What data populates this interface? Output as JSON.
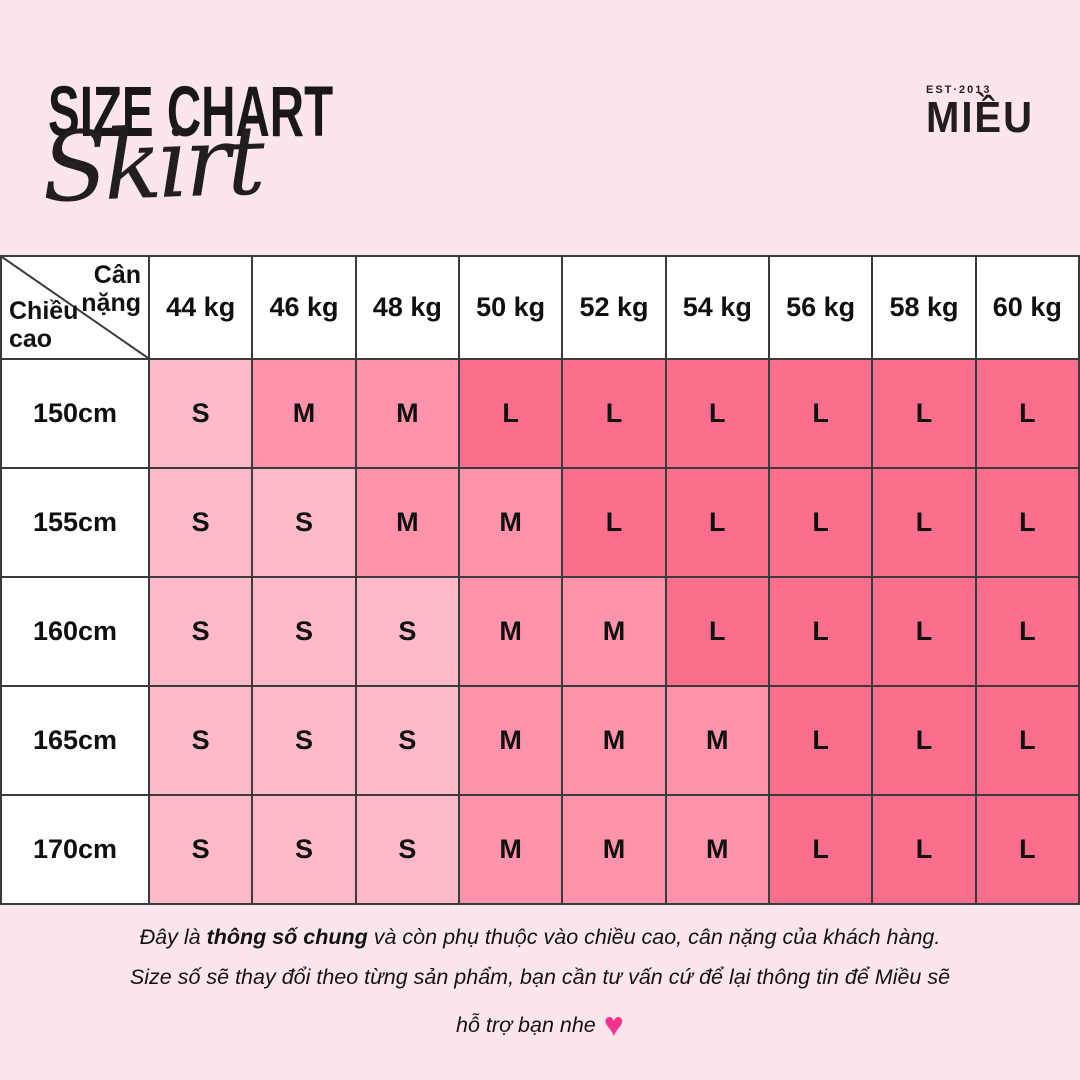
{
  "page": {
    "background": "#FCE6EB"
  },
  "header": {
    "title": "SIZE CHART",
    "subtitle": "Skirt",
    "logo": {
      "est": "EST·2013",
      "name": "MIỀU"
    }
  },
  "table": {
    "corner": {
      "top_right": "Cân nặng",
      "bottom_left": "Chiều cao"
    }
  },
  "chart_data": {
    "type": "table",
    "title": "SIZE CHART",
    "subtitle": "Skirt",
    "x_axis_label": "Cân nặng",
    "y_axis_label": "Chiều cao",
    "x_categories": [
      "44 kg",
      "46 kg",
      "48 kg",
      "50 kg",
      "52 kg",
      "54 kg",
      "56 kg",
      "58 kg",
      "60 kg"
    ],
    "y_categories": [
      "150cm",
      "155cm",
      "160cm",
      "165cm",
      "170cm"
    ],
    "cells": [
      [
        "S",
        "M",
        "M",
        "L",
        "L",
        "L",
        "L",
        "L",
        "L"
      ],
      [
        "S",
        "S",
        "M",
        "M",
        "L",
        "L",
        "L",
        "L",
        "L"
      ],
      [
        "S",
        "S",
        "S",
        "M",
        "M",
        "L",
        "L",
        "L",
        "L"
      ],
      [
        "S",
        "S",
        "S",
        "M",
        "M",
        "M",
        "L",
        "L",
        "L"
      ],
      [
        "S",
        "S",
        "S",
        "M",
        "M",
        "M",
        "L",
        "L",
        "L"
      ]
    ],
    "size_colors": {
      "S": "#FFB9C9",
      "M": "#FF93AC",
      "L": "#FC6E8E"
    },
    "grid_color": "#3b3b3b",
    "header_bg": "#ffffff"
  },
  "footer": {
    "line1_prefix": "Đây là ",
    "line1_bold": "thông số chung",
    "line1_suffix": " và còn phụ thuộc vào chiều cao, cân nặng của khách hàng.",
    "line2": "Size số sẽ thay đổi theo từng sản phẩm, bạn cần tư vấn cứ để lại thông tin để Miều sẽ",
    "line3": "hỗ trợ bạn nhe",
    "heart": "♥",
    "heart_color": "#F5338F"
  }
}
